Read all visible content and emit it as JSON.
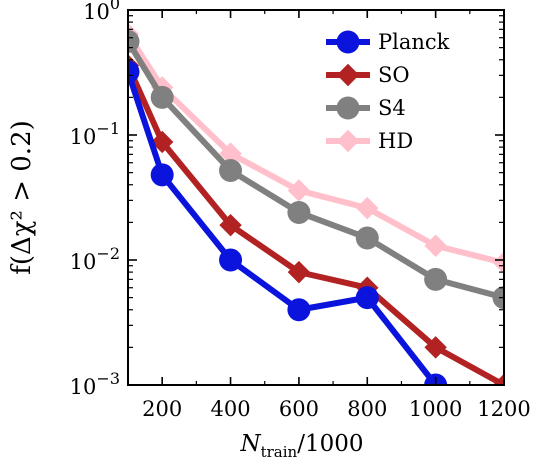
{
  "chart_data": {
    "type": "line",
    "yscale": "log",
    "xlim": [
      100,
      1200
    ],
    "ylim": [
      0.001,
      1.0
    ],
    "xticks": [
      200,
      400,
      600,
      800,
      1000,
      1200
    ],
    "xtick_labels": [
      "200",
      "400",
      "600",
      "800",
      "1000",
      "1200"
    ],
    "yticks": [
      0.001,
      0.01,
      0.1,
      1.0
    ],
    "ytick_labels": [
      {
        "base": "10",
        "exp": "−3"
      },
      {
        "base": "10",
        "exp": "−2"
      },
      {
        "base": "10",
        "exp": "−1"
      },
      {
        "base": "10",
        "exp": "0"
      }
    ],
    "xlabel": {
      "main": "N",
      "sub": "train",
      "rest": "/1000"
    },
    "ylabel": "f(Δχ² > 0.2)",
    "grid": false,
    "legend_position": "top-right",
    "series": [
      {
        "name": "Planck",
        "color": "#0a14dc",
        "marker": "circle",
        "x": [
          100,
          200,
          400,
          600,
          800,
          1000
        ],
        "y": [
          0.32,
          0.048,
          0.01,
          0.004,
          0.005,
          0.001
        ]
      },
      {
        "name": "SO",
        "color": "#b22222",
        "marker": "diamond",
        "x": [
          100,
          200,
          400,
          600,
          800,
          1000,
          1200
        ],
        "y": [
          0.36,
          0.088,
          0.019,
          0.008,
          0.006,
          0.002,
          0.001
        ]
      },
      {
        "name": "S4",
        "color": "#808080",
        "marker": "circle",
        "x": [
          100,
          200,
          400,
          600,
          800,
          1000,
          1200
        ],
        "y": [
          0.56,
          0.2,
          0.052,
          0.024,
          0.015,
          0.007,
          0.005
        ]
      },
      {
        "name": "HD",
        "color": "#ffc0cb",
        "marker": "diamond",
        "x": [
          100,
          200,
          400,
          600,
          800,
          1000,
          1200
        ],
        "y": [
          0.64,
          0.24,
          0.071,
          0.036,
          0.026,
          0.013,
          0.0095
        ]
      }
    ]
  }
}
